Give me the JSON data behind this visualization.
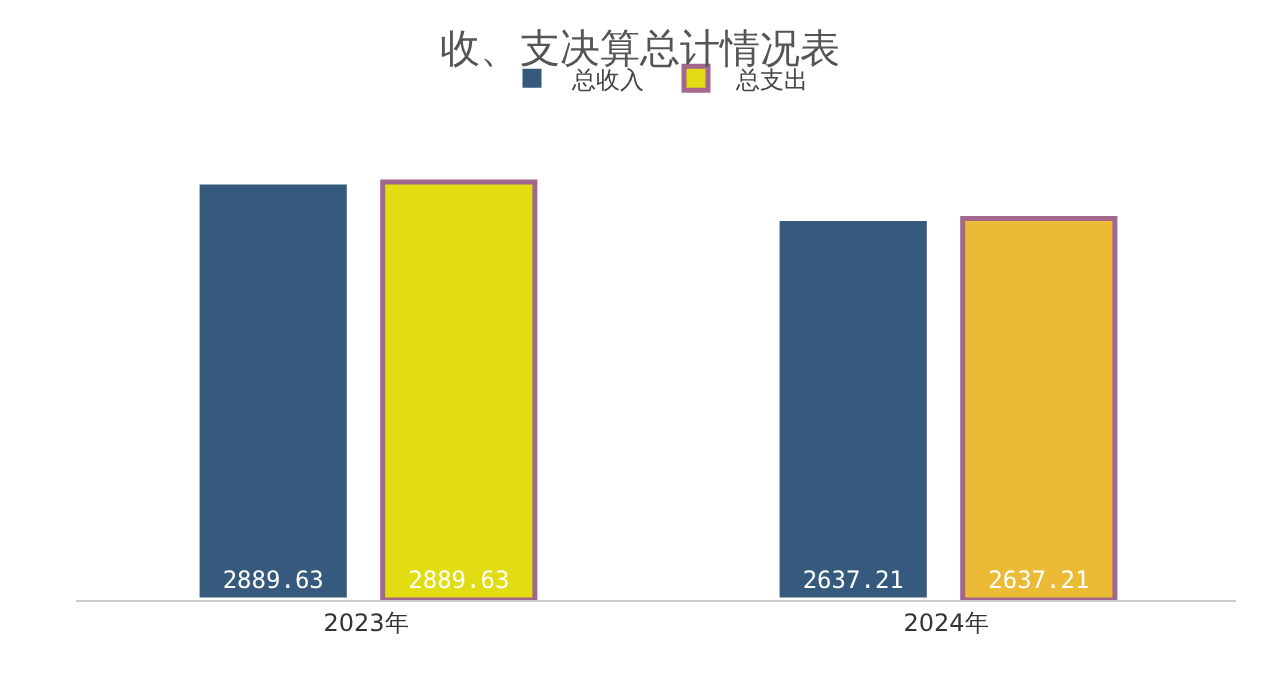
{
  "chart_data": {
    "type": "bar",
    "title": "收、支决算总计情况表",
    "categories": [
      "2023年",
      "2024年"
    ],
    "series": [
      {
        "name": "总收入",
        "color": "#355a7d",
        "values": [
          2889.63,
          2637.21
        ]
      },
      {
        "name": "总支出",
        "color": "#a3668c",
        "colors": [
          "#e2dc12",
          "#ebbb35"
        ],
        "values": [
          2889.63,
          2637.21
        ]
      }
    ],
    "data_labels": true,
    "legend": "top",
    "grid": false
  }
}
